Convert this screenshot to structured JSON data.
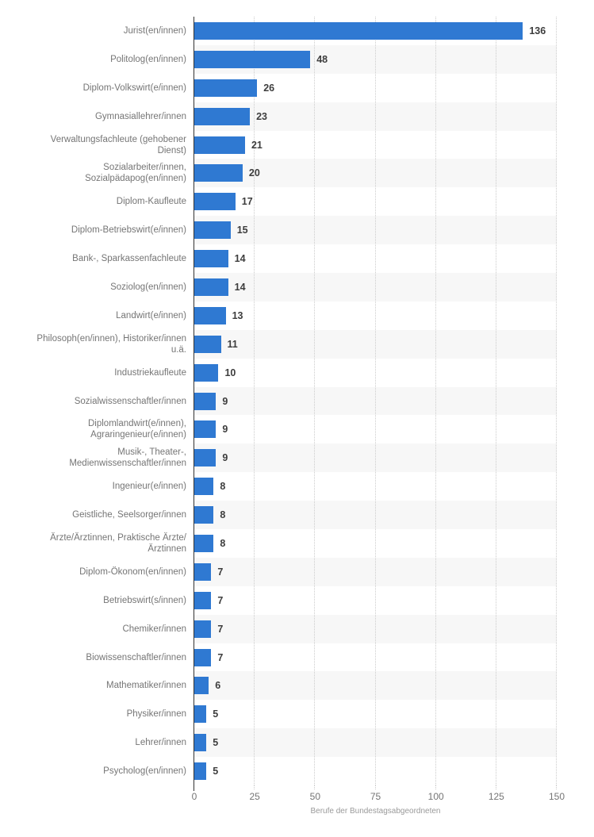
{
  "chart_data": {
    "type": "bar",
    "orientation": "horizontal",
    "xlabel": "Berufe der Bundestagsabgeordneten",
    "categories": [
      "Jurist(en/innen)",
      "Politolog(en/innen)",
      "Diplom-Volkswirt(e/innen)",
      "Gymnasiallehrer/innen",
      "Verwaltungsfachleute (gehobener Dienst)",
      "Sozialarbeiter/innen, Sozialpädapog(en/innen)",
      "Diplom-Kaufleute",
      "Diplom-Betriebswirt(e/innen)",
      "Bank-, Sparkassenfachleute",
      "Soziolog(en/innen)",
      "Landwirt(e/innen)",
      "Philosoph(en/innen), Historiker/innen u.ä.",
      "Industriekaufleute",
      "Sozialwissenschaftler/innen",
      "Diplomlandwirt(e/innen), Agraringenieur(e/innen)",
      "Musik-, Theater-, Medienwissenschaftler/innen",
      "Ingenieur(e/innen)",
      "Geistliche, Seelsorger/innen",
      "Ärzte/Ärztinnen, Praktische Ärzte/Ärztinnen",
      "Diplom-Ökonom(en/innen)",
      "Betriebswirt(s/innen)",
      "Chemiker/innen",
      "Biowissenschaftler/innen",
      "Mathematiker/innen",
      "Physiker/innen",
      "Lehrer/innen",
      "Psycholog(en/innen)"
    ],
    "values": [
      136,
      48,
      26,
      23,
      21,
      20,
      17,
      15,
      14,
      14,
      13,
      11,
      10,
      9,
      9,
      9,
      8,
      8,
      8,
      7,
      7,
      7,
      7,
      6,
      5,
      5,
      5
    ],
    "xlim": [
      0,
      150
    ],
    "x_ticks": [
      0,
      25,
      50,
      75,
      100,
      125,
      150
    ],
    "grid": "vertical-dotted",
    "legend": "none",
    "row_striping": "alternate-even-rows",
    "colors": {
      "bar": "#2f79d2",
      "stripe": "#f7f7f7",
      "grid": "#cccccc",
      "axis": "#333333",
      "category_label": "#757575",
      "value_label": "#3d3d3d",
      "tick_label": "#757575",
      "axis_title": "#9a9a9a"
    }
  }
}
